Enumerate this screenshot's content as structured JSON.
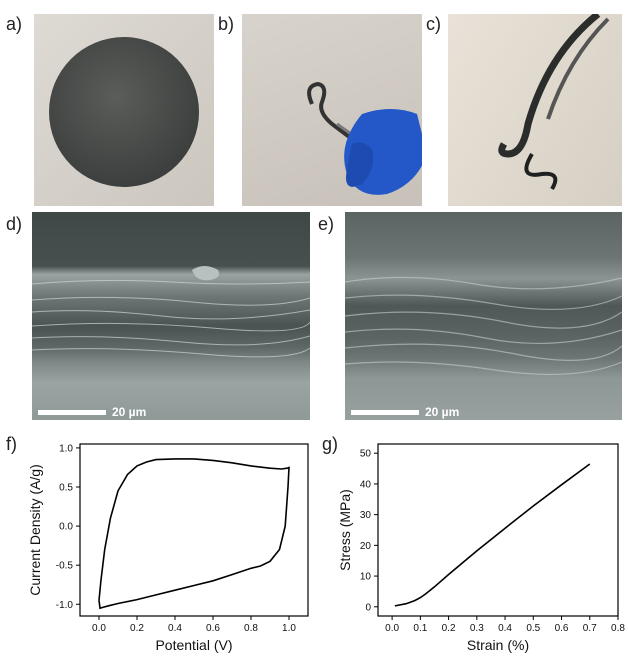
{
  "panels": {
    "a": "a)",
    "b": "b)",
    "c": "c)",
    "d": "d)",
    "e": "e)",
    "f": "f)",
    "g": "g)"
  },
  "sem_d": {
    "scale_label": "20 µm"
  },
  "sem_e": {
    "scale_label": "20 µm"
  },
  "chart_data": [
    {
      "type": "line",
      "panel": "f)",
      "xlabel": "Potential (V)",
      "ylabel": "Current Density (A/g)",
      "xlim": [
        -0.1,
        1.1
      ],
      "ylim": [
        -1.15,
        1.05
      ],
      "xticks": [
        "0.0",
        "0.2",
        "0.4",
        "0.6",
        "0.8",
        "1.0"
      ],
      "yticks": [
        "-1.0",
        "-0.5",
        "0.0",
        "0.5",
        "1.0"
      ],
      "series": [
        {
          "x": [
            0.0,
            0.01,
            0.03,
            0.06,
            0.1,
            0.15,
            0.2,
            0.25,
            0.3,
            0.4,
            0.5,
            0.6,
            0.7,
            0.8,
            0.9,
            0.96,
            0.99,
            1.0,
            0.995,
            0.98,
            0.95,
            0.9,
            0.85,
            0.8,
            0.7,
            0.6,
            0.5,
            0.4,
            0.3,
            0.2,
            0.1,
            0.05,
            0.02,
            0.005,
            0.0
          ],
          "y": [
            -0.95,
            -0.7,
            -0.3,
            0.1,
            0.45,
            0.66,
            0.77,
            0.82,
            0.85,
            0.86,
            0.86,
            0.84,
            0.81,
            0.77,
            0.74,
            0.73,
            0.74,
            0.75,
            0.5,
            0.0,
            -0.3,
            -0.45,
            -0.51,
            -0.54,
            -0.62,
            -0.7,
            -0.76,
            -0.82,
            -0.88,
            -0.94,
            -0.99,
            -1.02,
            -1.04,
            -1.05,
            -0.95
          ]
        }
      ]
    },
    {
      "type": "line",
      "panel": "g)",
      "xlabel": "Strain (%)",
      "ylabel": "Stress (MPa)",
      "xlim": [
        -0.05,
        0.8
      ],
      "ylim": [
        -3,
        53
      ],
      "xticks": [
        "0.0",
        "0.1",
        "0.2",
        "0.3",
        "0.4",
        "0.5",
        "0.6",
        "0.7",
        "0.8"
      ],
      "yticks": [
        "0",
        "10",
        "20",
        "30",
        "40",
        "50"
      ],
      "series": [
        {
          "x": [
            0.01,
            0.05,
            0.08,
            0.1,
            0.12,
            0.15,
            0.2,
            0.3,
            0.4,
            0.5,
            0.6,
            0.7
          ],
          "y": [
            0.3,
            1.0,
            2.0,
            3.0,
            4.3,
            6.5,
            10.5,
            18.2,
            25.6,
            32.8,
            39.7,
            46.5
          ]
        }
      ]
    }
  ]
}
